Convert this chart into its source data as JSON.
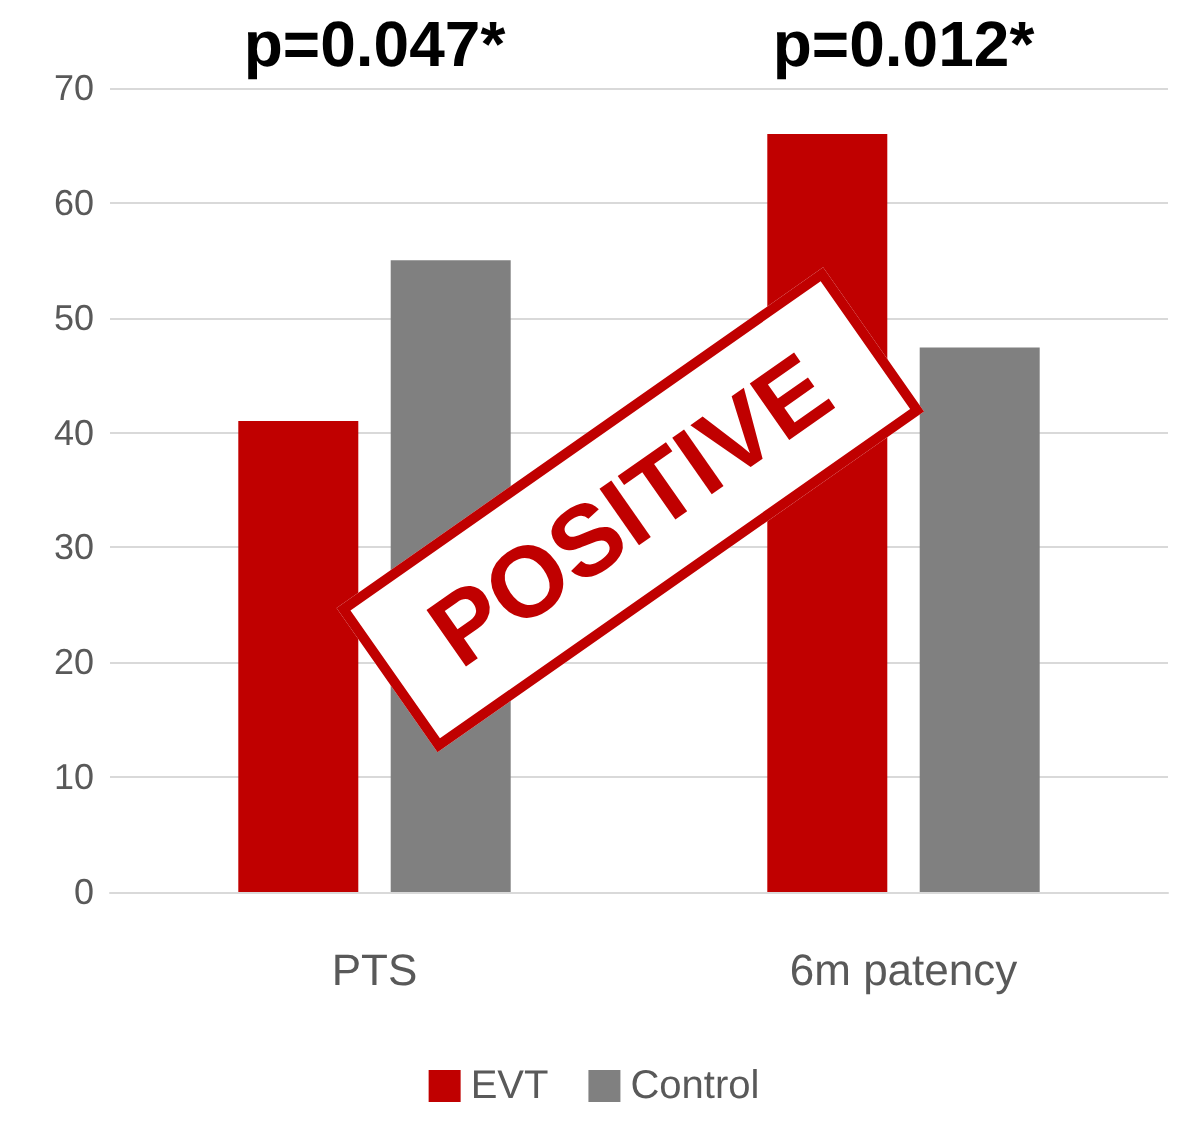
{
  "chart_data": {
    "type": "bar",
    "categories": [
      "PTS",
      "6m patency"
    ],
    "series": [
      {
        "name": "EVT",
        "color": "#c00000",
        "values": [
          41,
          66
        ]
      },
      {
        "name": "Control",
        "color": "#808080",
        "values": [
          55,
          47.4
        ]
      }
    ],
    "ylim": [
      0,
      70
    ],
    "yticks": [
      0,
      10,
      20,
      30,
      40,
      50,
      60,
      70
    ],
    "grid": "y",
    "legend": "bottom",
    "annotations": [
      "p=0.047*",
      "p=0.012*",
      "POSITIVE"
    ]
  }
}
